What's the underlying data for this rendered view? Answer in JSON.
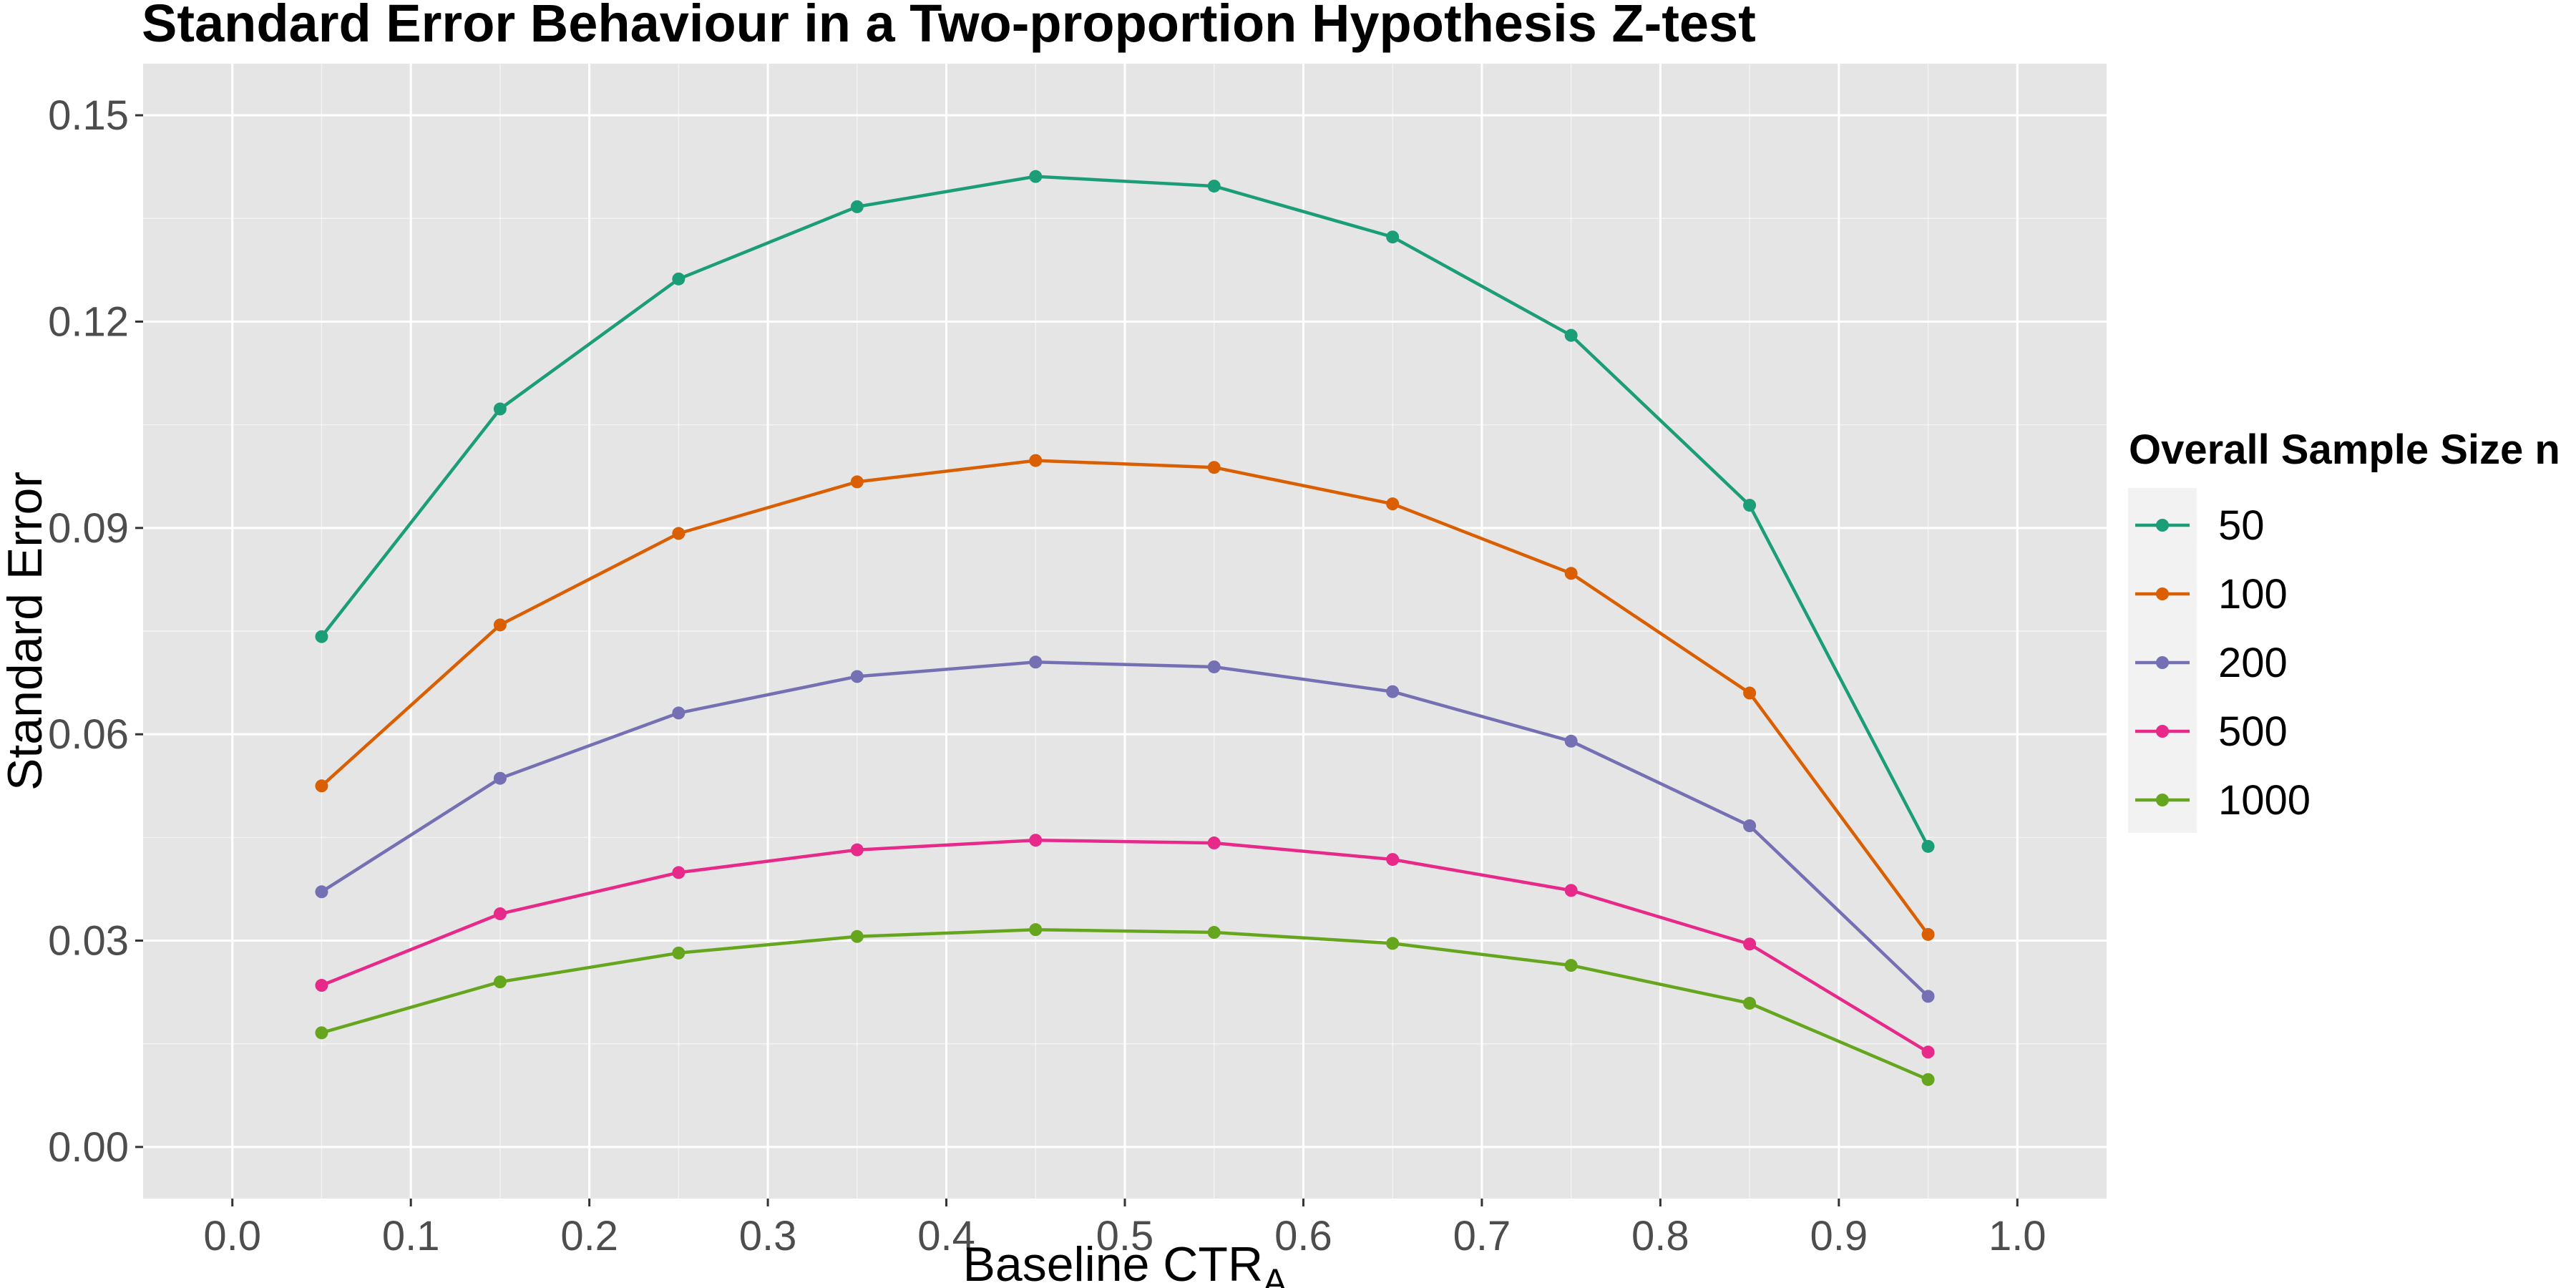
{
  "chart_data": {
    "type": "line",
    "title": "Standard Error Behaviour in a Two-proportion Hypothesis Z-test",
    "xlabel": "Baseline CTR",
    "xlabel_subscript": "A",
    "ylabel": "Standard Error",
    "xlim": [
      -0.05,
      1.05
    ],
    "ylim": [
      -0.0075,
      0.1575
    ],
    "x_ticks": [
      "0.0",
      "0.1",
      "0.2",
      "0.3",
      "0.4",
      "0.5",
      "0.6",
      "0.7",
      "0.8",
      "0.9",
      "1.0"
    ],
    "y_ticks": [
      "0.00",
      "0.03",
      "0.06",
      "0.09",
      "0.12",
      "0.15"
    ],
    "grid": true,
    "legend": {
      "title": "Overall Sample Size n",
      "position": "right"
    },
    "x": [
      0.05,
      0.15,
      0.25,
      0.35,
      0.45,
      0.55,
      0.65,
      0.75,
      0.85,
      0.95
    ],
    "series": [
      {
        "name": "50",
        "color": "#1b9e77",
        "values": [
          0.0742,
          0.1073,
          0.1262,
          0.1367,
          0.1411,
          0.1397,
          0.1323,
          0.118,
          0.0933,
          0.0437
        ]
      },
      {
        "name": "100",
        "color": "#d95f02",
        "values": [
          0.0525,
          0.0759,
          0.0892,
          0.0967,
          0.0998,
          0.0988,
          0.0935,
          0.0834,
          0.066,
          0.0309
        ]
      },
      {
        "name": "200",
        "color": "#7570b3",
        "values": [
          0.0371,
          0.0536,
          0.0631,
          0.0684,
          0.0705,
          0.0698,
          0.0662,
          0.059,
          0.0467,
          0.0219
        ]
      },
      {
        "name": "500",
        "color": "#e7298a",
        "values": [
          0.0235,
          0.0339,
          0.0399,
          0.0432,
          0.0446,
          0.0442,
          0.0418,
          0.0373,
          0.0295,
          0.0138
        ]
      },
      {
        "name": "1000",
        "color": "#66a61e",
        "values": [
          0.0166,
          0.024,
          0.0282,
          0.0306,
          0.0316,
          0.0312,
          0.0296,
          0.0264,
          0.0209,
          0.0098
        ]
      }
    ],
    "colors": {
      "panel_background": "#e5e5e5",
      "grid_major": "#ffffff",
      "legend_key_background": "#f2f2f2"
    }
  }
}
